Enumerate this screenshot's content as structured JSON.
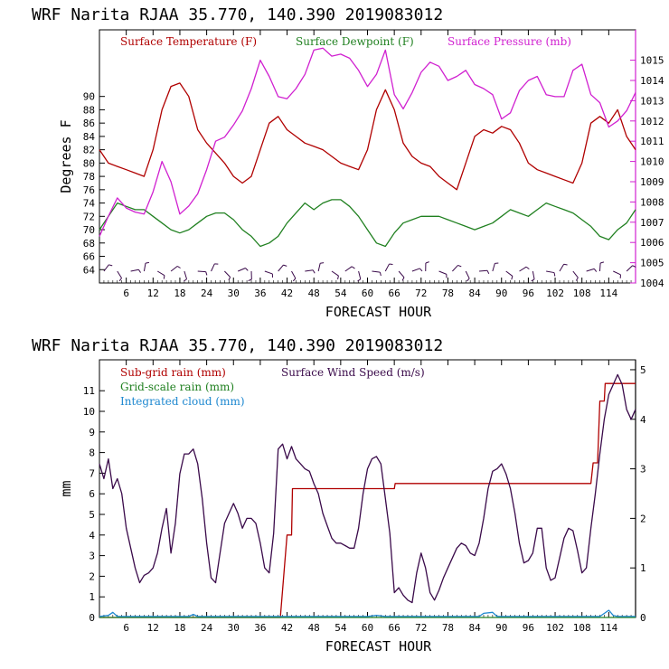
{
  "chart_data": [
    {
      "type": "line",
      "title": "WRF   Narita RJAA    35.770, 140.390  2019083012",
      "xlabel": "FORECAST HOUR",
      "ylabel": "Degrees F",
      "xlim": [
        0,
        120
      ],
      "ylim": [
        62,
        100
      ],
      "y2lim": [
        1004,
        1016.5
      ],
      "x_ticks": [
        "6",
        "12",
        "18",
        "24",
        "30",
        "36",
        "42",
        "48",
        "54",
        "60",
        "66",
        "72",
        "78",
        "84",
        "90",
        "96",
        "102",
        "108",
        "114"
      ],
      "y_ticks": [
        "64",
        "66",
        "68",
        "70",
        "72",
        "74",
        "76",
        "78",
        "80",
        "82",
        "84",
        "86",
        "88",
        "90"
      ],
      "y2_ticks": [
        "1004",
        "1005",
        "1006",
        "1007",
        "1008",
        "1009",
        "1010",
        "1011",
        "1012",
        "1013",
        "1014",
        "1015"
      ],
      "series": [
        {
          "name": "Surface Temperature (F)",
          "color": "#b00000",
          "axis": "left",
          "x": [
            0,
            2,
            4,
            6,
            8,
            10,
            12,
            14,
            16,
            18,
            20,
            22,
            24,
            26,
            28,
            30,
            32,
            34,
            36,
            38,
            40,
            42,
            44,
            46,
            48,
            50,
            52,
            54,
            56,
            58,
            60,
            62,
            64,
            66,
            68,
            70,
            72,
            74,
            76,
            78,
            80,
            82,
            84,
            86,
            88,
            90,
            92,
            94,
            96,
            98,
            100,
            102,
            104,
            106,
            108,
            110,
            112,
            114,
            116,
            118,
            120
          ],
          "values": [
            82,
            80,
            79.5,
            79,
            78.5,
            78,
            82,
            88,
            91.5,
            92,
            90,
            85,
            83,
            81.5,
            80,
            78,
            77,
            78,
            82,
            86,
            87,
            85,
            84,
            83,
            82.5,
            82,
            81,
            80,
            79.5,
            79,
            82,
            88,
            91,
            88,
            83,
            81,
            80,
            79.5,
            78,
            77,
            76,
            80,
            84,
            85,
            84.5,
            85.5,
            85,
            83,
            80,
            79,
            78.5,
            78,
            77.5,
            77,
            80,
            86,
            87,
            86,
            88,
            84,
            82
          ]
        },
        {
          "name": "Surface Dewpoint (F)",
          "color": "#208020",
          "axis": "left",
          "x": [
            0,
            2,
            4,
            6,
            8,
            10,
            12,
            14,
            16,
            18,
            20,
            22,
            24,
            26,
            28,
            30,
            32,
            34,
            36,
            38,
            40,
            42,
            44,
            46,
            48,
            50,
            52,
            54,
            56,
            58,
            60,
            62,
            64,
            66,
            68,
            70,
            72,
            74,
            76,
            78,
            80,
            82,
            84,
            86,
            88,
            90,
            92,
            94,
            96,
            98,
            100,
            102,
            104,
            106,
            108,
            110,
            112,
            114,
            116,
            118,
            120
          ],
          "values": [
            70,
            72,
            74,
            73.5,
            73,
            73,
            72,
            71,
            70,
            69.5,
            70,
            71,
            72,
            72.5,
            72.5,
            71.5,
            70,
            69,
            67.5,
            68,
            69,
            71,
            72.5,
            74,
            73,
            74,
            74.5,
            74.5,
            73.5,
            72,
            70,
            68,
            67.5,
            69.5,
            71,
            71.5,
            72,
            72,
            72,
            71.5,
            71,
            70.5,
            70,
            70.5,
            71,
            72,
            73,
            72.5,
            72,
            73,
            74,
            73.5,
            73,
            72.5,
            71.5,
            70.5,
            69,
            68.5,
            70,
            71,
            73
          ]
        },
        {
          "name": "Surface Pressure (mb)",
          "color": "#d020d0",
          "axis": "right",
          "x": [
            0,
            2,
            4,
            6,
            8,
            10,
            12,
            14,
            16,
            18,
            20,
            22,
            24,
            26,
            28,
            30,
            32,
            34,
            36,
            38,
            40,
            42,
            44,
            46,
            48,
            50,
            52,
            54,
            56,
            58,
            60,
            62,
            64,
            66,
            68,
            70,
            72,
            74,
            76,
            78,
            80,
            82,
            84,
            86,
            88,
            90,
            92,
            94,
            96,
            98,
            100,
            102,
            104,
            106,
            108,
            110,
            112,
            114,
            116,
            118,
            120
          ],
          "values": [
            1006.3,
            1007.3,
            1008.2,
            1007.7,
            1007.5,
            1007.4,
            1008.5,
            1010,
            1009,
            1007.4,
            1007.8,
            1008.4,
            1009.6,
            1011,
            1011.2,
            1011.8,
            1012.5,
            1013.6,
            1015,
            1014.2,
            1013.2,
            1013.1,
            1013.6,
            1014.3,
            1015.5,
            1015.6,
            1015.2,
            1015.3,
            1015.1,
            1014.5,
            1013.7,
            1014.3,
            1015.5,
            1013.3,
            1012.6,
            1013.4,
            1014.4,
            1014.9,
            1014.7,
            1014,
            1014.2,
            1014.5,
            1013.8,
            1013.6,
            1013.3,
            1012.1,
            1012.4,
            1013.5,
            1014,
            1014.2,
            1013.3,
            1013.2,
            1013.2,
            1014.5,
            1014.8,
            1013.3,
            1012.9,
            1011.7,
            1012,
            1012.5,
            1013.4
          ]
        }
      ]
    },
    {
      "type": "line",
      "title": "WRF   Narita RJAA    35.770, 140.390  2019083012",
      "xlabel": "FORECAST HOUR",
      "ylabel": "mm",
      "xlim": [
        0,
        120
      ],
      "ylim": [
        0,
        12.5
      ],
      "y2lim": [
        0,
        5.2
      ],
      "x_ticks": [
        "6",
        "12",
        "18",
        "24",
        "30",
        "36",
        "42",
        "48",
        "54",
        "60",
        "66",
        "72",
        "78",
        "84",
        "90",
        "96",
        "102",
        "108",
        "114"
      ],
      "y_ticks": [
        "0",
        "1",
        "2",
        "3",
        "4",
        "5",
        "6",
        "7",
        "8",
        "9",
        "10",
        "11"
      ],
      "y2_ticks": [
        "0",
        "1",
        "2",
        "3",
        "4",
        "5"
      ],
      "series": [
        {
          "name": "Sub-grid rain (mm)",
          "color": "#b00000",
          "axis": "left",
          "x": [
            0,
            40.5,
            42,
            43,
            43.2,
            66,
            66.2,
            110,
            110.5,
            111.5,
            112,
            113,
            113.2,
            120
          ],
          "values": [
            0,
            0,
            4,
            4,
            6.25,
            6.25,
            6.5,
            6.5,
            7.5,
            7.5,
            10.5,
            10.5,
            11.35,
            11.35
          ]
        },
        {
          "name": "Grid-scale rain (mm)",
          "color": "#208020",
          "axis": "left",
          "x": [
            0,
            120
          ],
          "values": [
            0,
            0
          ]
        },
        {
          "name": "Integrated cloud (mm)",
          "color": "#1e88d0",
          "axis": "left",
          "x": [
            0,
            2,
            3,
            4,
            20,
            21,
            22,
            60,
            62,
            64,
            85,
            86,
            88,
            89,
            112,
            114,
            115,
            116,
            120
          ],
          "values": [
            0.05,
            0.1,
            0.25,
            0.05,
            0.05,
            0.15,
            0.05,
            0.05,
            0.1,
            0.05,
            0.05,
            0.2,
            0.25,
            0.05,
            0.05,
            0.35,
            0.1,
            0.05,
            0.05
          ]
        },
        {
          "name": "Surface Wind Speed (m/s)",
          "color": "#3a0a4a",
          "axis": "right",
          "x": [
            0,
            1,
            2,
            3,
            4,
            5,
            6,
            7,
            8,
            9,
            10,
            11,
            12,
            13,
            14,
            15,
            16,
            17,
            18,
            19,
            20,
            21,
            22,
            23,
            24,
            25,
            26,
            27,
            28,
            29,
            30,
            31,
            32,
            33,
            34,
            35,
            36,
            37,
            38,
            39,
            40,
            41,
            42,
            43,
            44,
            45,
            46,
            47,
            48,
            49,
            50,
            51,
            52,
            53,
            54,
            55,
            56,
            57,
            58,
            59,
            60,
            61,
            62,
            63,
            64,
            65,
            66,
            67,
            68,
            69,
            70,
            71,
            72,
            73,
            74,
            75,
            76,
            77,
            78,
            79,
            80,
            81,
            82,
            83,
            84,
            85,
            86,
            87,
            88,
            89,
            90,
            91,
            92,
            93,
            94,
            95,
            96,
            97,
            98,
            99,
            100,
            101,
            102,
            103,
            104,
            105,
            106,
            107,
            108,
            109,
            110,
            111,
            112,
            113,
            114,
            115,
            116,
            117,
            118,
            119,
            120
          ],
          "values": [
            3.1,
            2.8,
            3.2,
            2.6,
            2.8,
            2.5,
            1.8,
            1.4,
            1.0,
            0.7,
            0.85,
            0.9,
            1.0,
            1.3,
            1.8,
            2.2,
            1.3,
            1.9,
            2.9,
            3.3,
            3.3,
            3.4,
            3.1,
            2.4,
            1.5,
            0.8,
            0.7,
            1.3,
            1.9,
            2.1,
            2.3,
            2.1,
            1.8,
            2.0,
            2.0,
            1.9,
            1.5,
            1.0,
            0.9,
            1.7,
            3.4,
            3.5,
            3.2,
            3.45,
            3.2,
            3.1,
            3.0,
            2.95,
            2.7,
            2.5,
            2.1,
            1.85,
            1.6,
            1.5,
            1.5,
            1.45,
            1.4,
            1.4,
            1.8,
            2.5,
            3.0,
            3.2,
            3.25,
            3.1,
            2.4,
            1.7,
            0.5,
            0.6,
            0.45,
            0.35,
            0.3,
            0.9,
            1.3,
            1.0,
            0.5,
            0.35,
            0.55,
            0.8,
            1.0,
            1.2,
            1.4,
            1.5,
            1.45,
            1.3,
            1.25,
            1.5,
            2.0,
            2.6,
            2.95,
            3.0,
            3.1,
            2.9,
            2.6,
            2.1,
            1.5,
            1.1,
            1.15,
            1.3,
            1.8,
            1.8,
            1.0,
            0.75,
            0.8,
            1.2,
            1.6,
            1.8,
            1.75,
            1.35,
            0.9,
            1.0,
            1.8,
            2.5,
            3.3,
            4.0,
            4.5,
            4.7,
            4.9,
            4.7,
            4.2,
            4.0,
            4.2
          ]
        }
      ]
    }
  ]
}
